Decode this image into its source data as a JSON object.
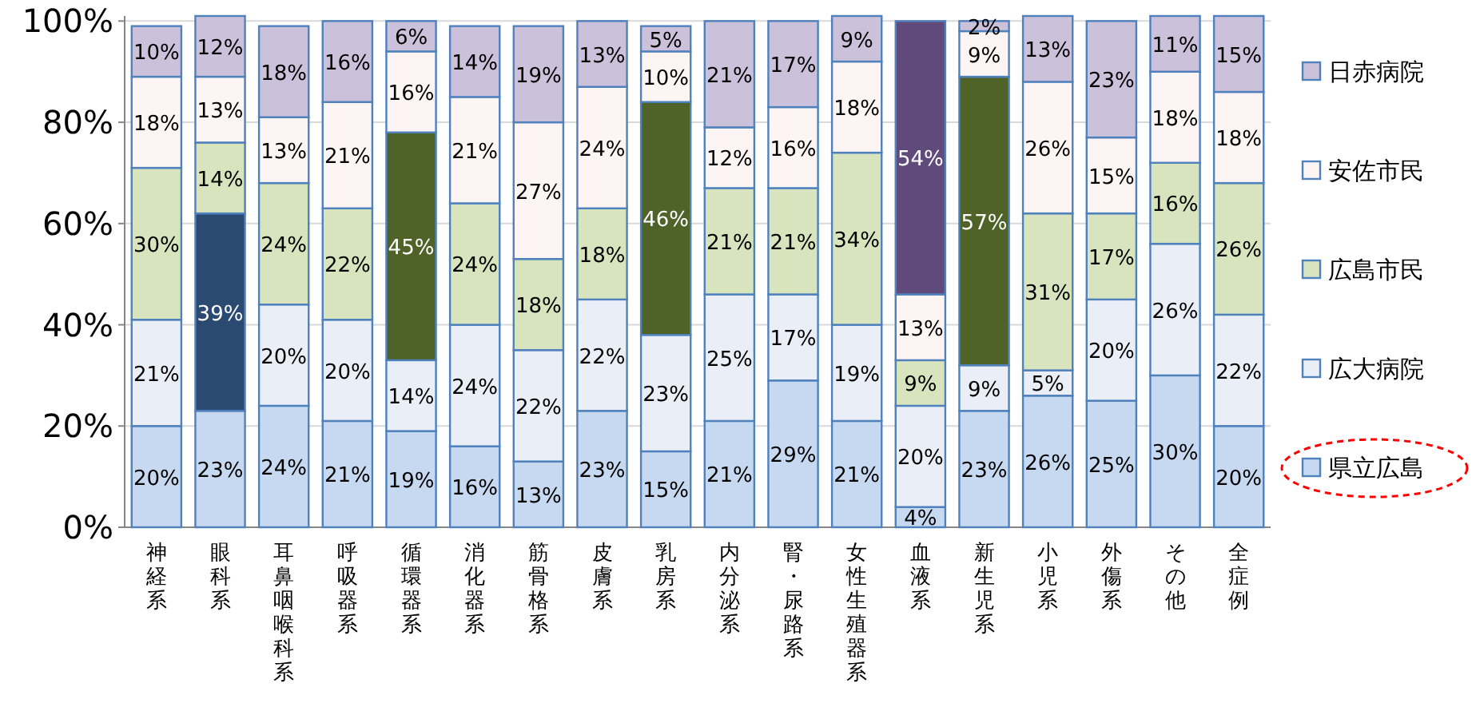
{
  "chart_data": {
    "type": "bar",
    "stacked": true,
    "categories": [
      "神経系",
      "眼科系",
      "耳鼻咽喉科系",
      "呼吸器系",
      "循環器系",
      "消化器系",
      "筋骨格系",
      "皮膚系",
      "乳房系",
      "内分泌系",
      "腎・尿路系",
      "女性生殖器系",
      "血液系",
      "新生児系",
      "小児系",
      "外傷系",
      "その他",
      "全症例"
    ],
    "ylim": [
      0,
      101
    ],
    "yticks": [
      {
        "value": 0,
        "label": "0%"
      },
      {
        "value": 20,
        "label": "20%"
      },
      {
        "value": 40,
        "label": "40%"
      },
      {
        "value": 60,
        "label": "60%"
      },
      {
        "value": 80,
        "label": "80%"
      },
      {
        "value": 100,
        "label": "100%"
      }
    ],
    "grid": "y",
    "legend": "right",
    "series": [
      {
        "name": "県立広島",
        "color": "#c6d9f1",
        "values": [
          20,
          23,
          24,
          21,
          19,
          16,
          13,
          23,
          15,
          21,
          29,
          21,
          4,
          23,
          26,
          25,
          30,
          20
        ],
        "value_labels": [
          "20%",
          "23%",
          "24%",
          "21%",
          "19%",
          "16%",
          "13%",
          "23%",
          "15%",
          "21%",
          "29%",
          "21%",
          "4%",
          "23%",
          "26%",
          "25%",
          "30%",
          "20%"
        ]
      },
      {
        "name": "広大病院",
        "color": "#e9eef7",
        "colors": [
          "#e9eef7",
          "#2b4a72",
          "#e9eef7",
          "#e9eef7",
          "#e9eef7",
          "#e9eef7",
          "#e9eef7",
          "#e9eef7",
          "#e9eef7",
          "#e9eef7",
          "#e9eef7",
          "#e9eef7",
          "#e9eef7",
          "#e9eef7",
          "#e9eef7",
          "#e9eef7",
          "#e9eef7",
          "#e9eef7"
        ],
        "values": [
          21,
          39,
          20,
          20,
          14,
          24,
          22,
          22,
          23,
          25,
          17,
          19,
          20,
          9,
          5,
          20,
          26,
          22
        ],
        "value_labels": [
          "21%",
          "39%",
          "20%",
          "20%",
          "14%",
          "24%",
          "22%",
          "22%",
          "23%",
          "25%",
          "17%",
          "19%",
          "20%",
          "9%",
          "5%",
          "20%",
          "26%",
          "22%"
        ]
      },
      {
        "name": "広島市民",
        "color": "#d7e4bd",
        "colors": [
          "#d7e4bd",
          "#d7e4bd",
          "#d7e4bd",
          "#d7e4bd",
          "#4f6228",
          "#d7e4bd",
          "#d7e4bd",
          "#d7e4bd",
          "#4f6228",
          "#d7e4bd",
          "#d7e4bd",
          "#d7e4bd",
          "#d7e4bd",
          "#4f6228",
          "#d7e4bd",
          "#d7e4bd",
          "#d7e4bd",
          "#d7e4bd"
        ],
        "values": [
          30,
          14,
          24,
          22,
          45,
          24,
          18,
          18,
          46,
          21,
          21,
          34,
          9,
          57,
          31,
          17,
          16,
          26
        ],
        "value_labels": [
          "30%",
          "14%",
          "24%",
          "22%",
          "45%",
          "24%",
          "18%",
          "18%",
          "46%",
          "21%",
          "21%",
          "34%",
          "9%",
          "57%",
          "31%",
          "17%",
          "16%",
          "26%"
        ]
      },
      {
        "name": "安佐市民",
        "color": "#fdf5f3",
        "values": [
          18,
          13,
          13,
          21,
          16,
          21,
          27,
          24,
          10,
          12,
          16,
          18,
          13,
          9,
          26,
          15,
          18,
          18
        ],
        "value_labels": [
          "18%",
          "13%",
          "13%",
          "21%",
          "16%",
          "21%",
          "27%",
          "24%",
          "10%",
          "12%",
          "16%",
          "18%",
          "13%",
          "9%",
          "26%",
          "15%",
          "18%",
          "18%"
        ]
      },
      {
        "name": "日赤病院",
        "color": "#ccc1da",
        "colors": [
          "#ccc1da",
          "#ccc1da",
          "#ccc1da",
          "#ccc1da",
          "#ccc1da",
          "#ccc1da",
          "#ccc1da",
          "#ccc1da",
          "#ccc1da",
          "#ccc1da",
          "#ccc1da",
          "#ccc1da",
          "#604a7b",
          "#ccc1da",
          "#ccc1da",
          "#ccc1da",
          "#ccc1da",
          "#ccc1da"
        ],
        "values": [
          10,
          12,
          18,
          16,
          6,
          14,
          19,
          13,
          5,
          21,
          17,
          9,
          54,
          2,
          13,
          23,
          11,
          15
        ],
        "value_labels": [
          "10%",
          "12%",
          "18%",
          "16%",
          "6%",
          "14%",
          "19%",
          "13%",
          "5%",
          "21%",
          "17%",
          "9%",
          "54%",
          "2%",
          "13%",
          "23%",
          "11%",
          "15%"
        ]
      }
    ]
  }
}
